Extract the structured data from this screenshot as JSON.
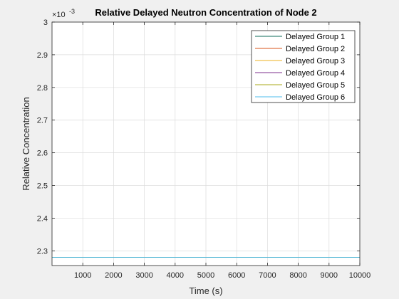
{
  "chart_data": {
    "type": "line",
    "title": "Relative Delayed Neutron Concentration of Node 2",
    "xlabel": "Time (s)",
    "ylabel": "Relative Concentration",
    "y_exponent_label": "×10",
    "y_exponent": "-3",
    "xlim": [
      0,
      10000
    ],
    "ylim": [
      2.255,
      3.0
    ],
    "y_scale_factor": 0.001,
    "x_ticks": [
      1000,
      2000,
      3000,
      4000,
      5000,
      6000,
      7000,
      8000,
      9000,
      10000
    ],
    "x_tick_labels": [
      "1000",
      "2000",
      "3000",
      "4000",
      "5000",
      "6000",
      "7000",
      "8000",
      "9000",
      "10000"
    ],
    "y_ticks": [
      2.3,
      2.4,
      2.5,
      2.6,
      2.7,
      2.8,
      2.9,
      3.0
    ],
    "y_tick_labels": [
      "2.3",
      "2.4",
      "2.5",
      "2.6",
      "2.7",
      "2.8",
      "2.9",
      "3"
    ],
    "grid": true,
    "legend_position": "top-right",
    "series": [
      {
        "name": "Delayed Group 1",
        "color": "#0e6b5a",
        "x": [
          0,
          10000
        ],
        "y": [
          2.28,
          2.28
        ]
      },
      {
        "name": "Delayed Group 2",
        "color": "#d95319",
        "x": [
          0,
          10000
        ],
        "y": [
          2.28,
          2.28
        ]
      },
      {
        "name": "Delayed Group 3",
        "color": "#edb120",
        "x": [
          0,
          10000
        ],
        "y": [
          2.28,
          2.28
        ]
      },
      {
        "name": "Delayed Group 4",
        "color": "#7e2f8e",
        "x": [
          0,
          10000
        ],
        "y": [
          2.28,
          2.28
        ]
      },
      {
        "name": "Delayed Group 5",
        "color": "#a8a81a",
        "x": [
          0,
          10000
        ],
        "y": [
          2.28,
          2.28
        ]
      },
      {
        "name": "Delayed Group 6",
        "color": "#4dbeee",
        "x": [
          0,
          10000
        ],
        "y": [
          2.28,
          2.28
        ]
      }
    ]
  }
}
